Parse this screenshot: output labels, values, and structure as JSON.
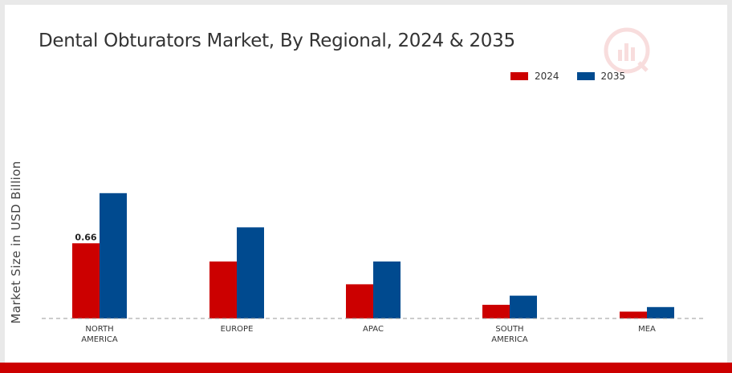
{
  "chart_data": {
    "type": "bar",
    "title": "Dental Obturators Market, By Regional, 2024 & 2035",
    "ylabel": "Market Size in USD Billion",
    "xlabel": "",
    "categories": [
      "NORTH\nAMERICA",
      "EUROPE",
      "APAC",
      "SOUTH\nAMERICA",
      "MEA"
    ],
    "series": [
      {
        "name": "2024",
        "color": "#cc0000",
        "values": [
          0.66,
          0.5,
          0.3,
          0.12,
          0.06
        ]
      },
      {
        "name": "2035",
        "color": "#004a8f",
        "values": [
          1.1,
          0.8,
          0.5,
          0.2,
          0.1
        ]
      }
    ],
    "data_labels": [
      {
        "series": "2024",
        "category_index": 0,
        "text": "0.66"
      }
    ],
    "ylim": [
      0,
      1.4
    ],
    "grid": false,
    "legend_position": "top-right",
    "baseline_style": "dashed"
  },
  "colors": {
    "accent_bar": "#cc0000",
    "background": "#ffffff"
  },
  "icons": {
    "watermark": "logo-watermark-icon"
  }
}
